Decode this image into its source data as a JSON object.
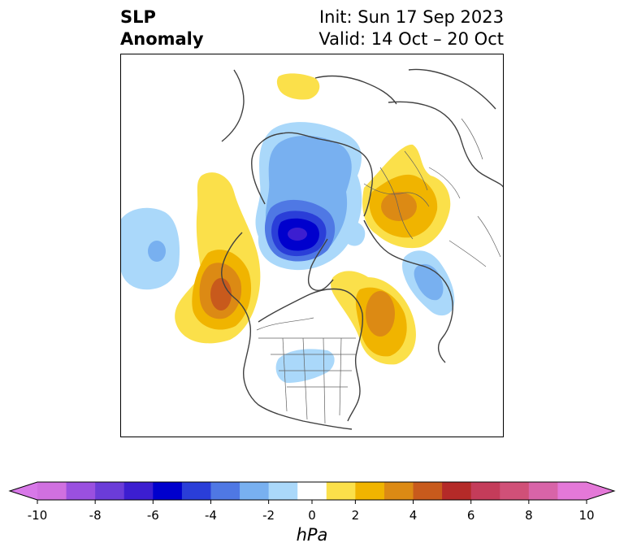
{
  "header": {
    "title_line1": "SLP",
    "title_line2": "Anomaly",
    "init": "Init: Sun 17 Sep 2023",
    "valid": "Valid: 14 Oct – 20 Oct"
  },
  "map": {
    "projection": "north-polar-stereographic",
    "features": [
      "coastlines",
      "country-borders",
      "us-state-borders"
    ],
    "anomaly_centers": [
      {
        "region": "Arctic Ocean (Beaufort/Siberian side)",
        "sign": "negative",
        "peak_hPa": -6
      },
      {
        "region": "Northern Russia / Siberia",
        "sign": "positive",
        "peak_hPa": 4
      },
      {
        "region": "Gulf of Alaska / NE Pacific",
        "sign": "positive",
        "peak_hPa": 5
      },
      {
        "region": "Western North Atlantic off Newfoundland",
        "sign": "positive",
        "peak_hPa": 4
      },
      {
        "region": "Central North Pacific",
        "sign": "negative",
        "peak_hPa": -3
      },
      {
        "region": "Eastern North Atlantic",
        "sign": "negative",
        "peak_hPa": -3
      },
      {
        "region": "Central United States",
        "sign": "negative",
        "peak_hPa": -2
      },
      {
        "region": "Northern Africa / Mediterranean",
        "sign": "positive",
        "peak_hPa": 2
      }
    ]
  },
  "colorbar": {
    "units": "hPa",
    "tick_labels": [
      "-10",
      "-8",
      "-6",
      "-4",
      "-2",
      "0",
      "2",
      "4",
      "6",
      "8",
      "10"
    ],
    "levels": [
      -10,
      -9,
      -8,
      -7,
      -6,
      -5,
      -4,
      -3,
      -2,
      -1,
      1,
      2,
      3,
      4,
      5,
      6,
      7,
      8,
      9,
      10
    ],
    "colors": [
      "#d070e0",
      "#9a50e0",
      "#6b3cd8",
      "#3c1ed0",
      "#0000cd",
      "#2a3ed8",
      "#4f78e4",
      "#78b0f0",
      "#aad8fa",
      "#ffffff",
      "#fbe04a",
      "#f0b400",
      "#dc8a14",
      "#c85a1c",
      "#b42a28",
      "#c43c5a",
      "#d05078",
      "#d864a8",
      "#e478d8"
    ],
    "extend_min_color": "#d878e8",
    "extend_max_color": "#e478d8"
  }
}
